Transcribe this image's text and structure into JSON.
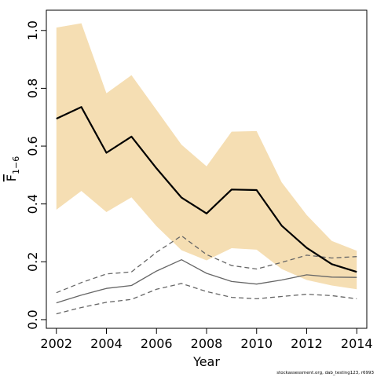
{
  "chart_data": {
    "type": "line",
    "title": "",
    "xlabel": "Year",
    "ylabel": "F",
    "ylabel_subscript": "1−6",
    "x": [
      2002,
      2003,
      2004,
      2005,
      2006,
      2007,
      2008,
      2009,
      2010,
      2011,
      2012,
      2013,
      2014
    ],
    "xticks": [
      2002,
      2004,
      2006,
      2008,
      2010,
      2012,
      2014
    ],
    "yticks": [
      "0.0",
      "0.2",
      "0.4",
      "0.6",
      "0.8",
      "1.0"
    ],
    "xlim": [
      2001.6,
      2014.4
    ],
    "ylim": [
      -0.03,
      1.07
    ],
    "grid": false,
    "band": {
      "color": "#f5deb3",
      "lower": [
        0.38,
        0.445,
        0.372,
        0.423,
        0.323,
        0.24,
        0.205,
        0.247,
        0.242,
        0.175,
        0.137,
        0.118,
        0.105
      ],
      "upper": [
        1.01,
        1.025,
        0.783,
        0.845,
        0.725,
        0.605,
        0.53,
        0.65,
        0.652,
        0.475,
        0.362,
        0.272,
        0.238
      ]
    },
    "series": [
      {
        "style": "solid",
        "color": "#000000",
        "width": 2.2,
        "values": [
          0.695,
          0.735,
          0.577,
          0.633,
          0.523,
          0.422,
          0.367,
          0.45,
          0.448,
          0.325,
          0.248,
          0.192,
          0.165
        ]
      },
      {
        "style": "solid",
        "color": "#666666",
        "width": 1.3,
        "values": [
          0.058,
          0.085,
          0.108,
          0.118,
          0.168,
          0.207,
          0.16,
          0.132,
          0.123,
          0.137,
          0.155,
          0.147,
          0.146
        ]
      },
      {
        "style": "dashed",
        "color": "#666666",
        "width": 1.3,
        "values": [
          0.093,
          0.128,
          0.158,
          0.165,
          0.233,
          0.29,
          0.225,
          0.187,
          0.175,
          0.198,
          0.223,
          0.213,
          0.218
        ]
      },
      {
        "style": "dashed",
        "color": "#666666",
        "width": 1.3,
        "values": [
          0.02,
          0.042,
          0.06,
          0.07,
          0.105,
          0.125,
          0.097,
          0.077,
          0.072,
          0.08,
          0.088,
          0.083,
          0.072
        ]
      }
    ]
  },
  "footnote": "stockassessment.org, dab_testing123, r6993"
}
